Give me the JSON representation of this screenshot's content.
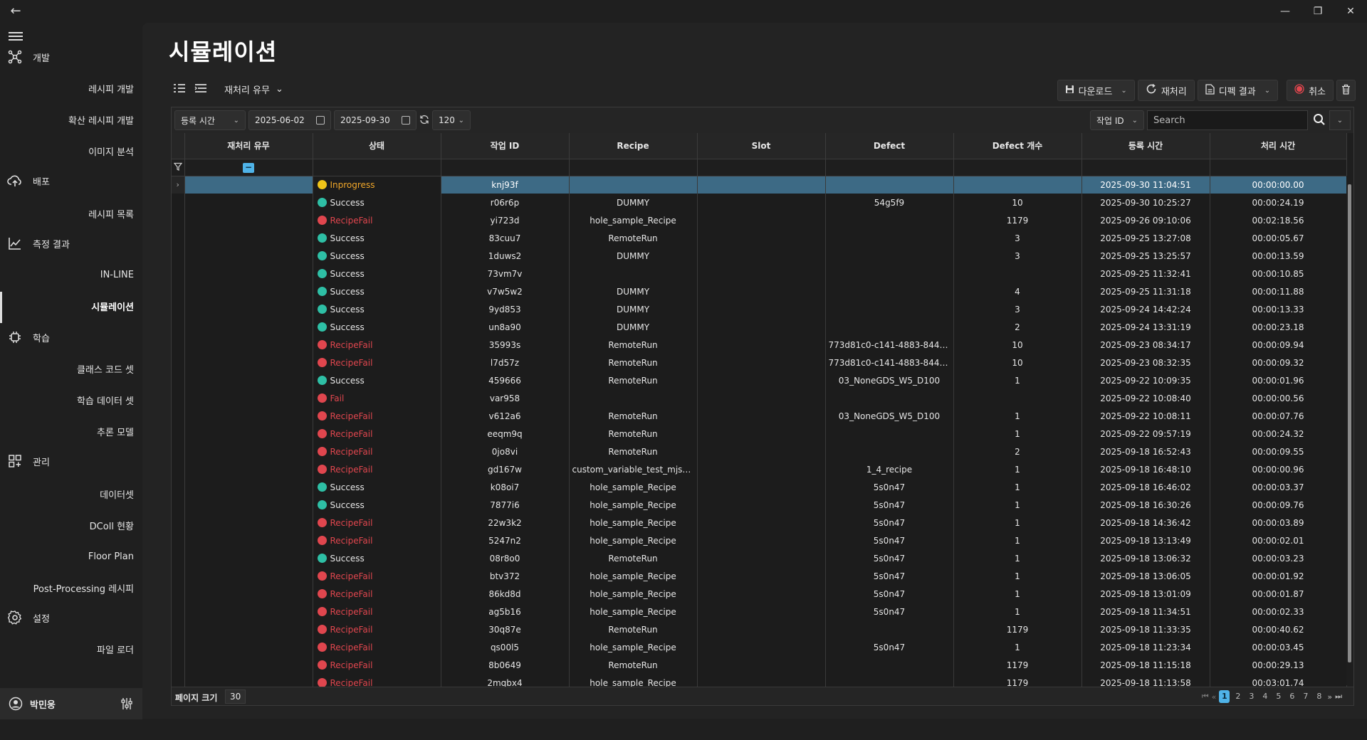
{
  "window": {
    "back_glyph": "←",
    "min_glyph": "—",
    "max_glyph": "❐",
    "close_glyph": "✕"
  },
  "sidebar": {
    "categories": [
      {
        "key": "dev",
        "label": "개발",
        "icon": "network-icon"
      },
      {
        "key": "deploy",
        "label": "배포",
        "icon": "cloud-upload-icon"
      },
      {
        "key": "measure",
        "label": "측정 결과",
        "icon": "line-chart-icon"
      },
      {
        "key": "learn",
        "label": "학습",
        "icon": "chip-icon"
      },
      {
        "key": "manage",
        "label": "관리",
        "icon": "apps-icon"
      },
      {
        "key": "settings",
        "label": "설정",
        "icon": "gear-icon"
      }
    ],
    "subitems": [
      "레시피 개발",
      "확산 레시피 개발",
      "이미지 분석",
      "레시피 목록",
      "IN-LINE",
      "시뮬레이션",
      "클래스 코드 셋",
      "학습 데이터 셋",
      "추론 모델",
      "데이터셋",
      "DColl 현황",
      "Floor Plan",
      "Post-Processing 레시피",
      "파일 로더"
    ],
    "active": "시뮬레이션",
    "user": "박민웅"
  },
  "page": {
    "title": "시뮬레이션"
  },
  "toolbar": {
    "group_by": "재처리 유무",
    "download": "다운로드",
    "reprocess": "재처리",
    "defect_result": "디펙 결과",
    "cancel": "취소"
  },
  "filterbar": {
    "date_field": "등록 시간",
    "start_date": "2025-06-02",
    "end_date": "2025-09-30",
    "refresh_interval": "120",
    "search_field": "작업 ID",
    "search_placeholder": "Search"
  },
  "table": {
    "columns": [
      "재처리 유무",
      "상태",
      "작업 ID",
      "Recipe",
      "Slot",
      "Defect",
      "Defect 개수",
      "등록 시간",
      "처리 시간"
    ],
    "rows": [
      [
        "",
        "Inprogress",
        "knj93f",
        "",
        "",
        "",
        "",
        "2025-09-30 11:04:51",
        "00:00:00.00"
      ],
      [
        "",
        "Success",
        "r06r6p",
        "DUMMY",
        "",
        "54g5f9",
        "10",
        "2025-09-30 10:25:27",
        "00:00:24.19"
      ],
      [
        "",
        "RecipeFail",
        "yi723d",
        "hole_sample_Recipe",
        "",
        "",
        "1179",
        "2025-09-26 09:10:06",
        "00:02:18.56"
      ],
      [
        "",
        "Success",
        "83cuu7",
        "RemoteRun",
        "",
        "",
        "3",
        "2025-09-25 13:27:08",
        "00:00:05.67"
      ],
      [
        "",
        "Success",
        "1duws2",
        "DUMMY",
        "",
        "",
        "3",
        "2025-09-25 13:25:57",
        "00:00:13.59"
      ],
      [
        "",
        "Success",
        "73vm7v",
        "",
        "",
        "",
        "",
        "2025-09-25 11:32:41",
        "00:00:10.85"
      ],
      [
        "",
        "Success",
        "v7w5w2",
        "DUMMY",
        "",
        "",
        "4",
        "2025-09-25 11:31:18",
        "00:00:11.88"
      ],
      [
        "",
        "Success",
        "9yd853",
        "DUMMY",
        "",
        "",
        "3",
        "2025-09-24 14:42:24",
        "00:00:13.33"
      ],
      [
        "",
        "Success",
        "un8a90",
        "DUMMY",
        "",
        "",
        "2",
        "2025-09-24 13:31:19",
        "00:00:23.18"
      ],
      [
        "",
        "RecipeFail",
        "35993s",
        "RemoteRun",
        "",
        "773d81c0-c141-4883-8440-c...",
        "10",
        "2025-09-23 08:34:17",
        "00:00:09.94"
      ],
      [
        "",
        "RecipeFail",
        "l7d57z",
        "RemoteRun",
        "",
        "773d81c0-c141-4883-8440-c...",
        "10",
        "2025-09-23 08:32:35",
        "00:00:09.32"
      ],
      [
        "",
        "Success",
        "459666",
        "RemoteRun",
        "",
        "03_NoneGDS_W5_D100",
        "1",
        "2025-09-22 10:09:35",
        "00:00:01.96"
      ],
      [
        "",
        "Fail",
        "var958",
        "",
        "",
        "",
        "",
        "2025-09-22 10:08:40",
        "00:00:00.56"
      ],
      [
        "",
        "RecipeFail",
        "v612a6",
        "RemoteRun",
        "",
        "03_NoneGDS_W5_D100",
        "1",
        "2025-09-22 10:08:11",
        "00:00:07.76"
      ],
      [
        "",
        "RecipeFail",
        "eeqm9q",
        "RemoteRun",
        "",
        "",
        "1",
        "2025-09-22 09:57:19",
        "00:00:24.32"
      ],
      [
        "",
        "RecipeFail",
        "0jo8vi",
        "RemoteRun",
        "",
        "",
        "2",
        "2025-09-18 16:52:43",
        "00:00:09.55"
      ],
      [
        "",
        "RecipeFail",
        "gd167w",
        "custom_variable_test_mjsong",
        "",
        "1_4_recipe",
        "1",
        "2025-09-18 16:48:10",
        "00:00:00.96"
      ],
      [
        "",
        "Success",
        "k08oi7",
        "hole_sample_Recipe",
        "",
        "5s0n47",
        "1",
        "2025-09-18 16:46:02",
        "00:00:03.37"
      ],
      [
        "",
        "Success",
        "7877i6",
        "hole_sample_Recipe",
        "",
        "5s0n47",
        "1",
        "2025-09-18 16:30:26",
        "00:00:09.76"
      ],
      [
        "",
        "RecipeFail",
        "22w3k2",
        "hole_sample_Recipe",
        "",
        "5s0n47",
        "1",
        "2025-09-18 14:36:42",
        "00:00:03.89"
      ],
      [
        "",
        "RecipeFail",
        "5247n2",
        "hole_sample_Recipe",
        "",
        "5s0n47",
        "1",
        "2025-09-18 13:13:49",
        "00:00:02.01"
      ],
      [
        "",
        "Success",
        "08r8o0",
        "RemoteRun",
        "",
        "5s0n47",
        "1",
        "2025-09-18 13:06:32",
        "00:00:03.23"
      ],
      [
        "",
        "RecipeFail",
        "btv372",
        "hole_sample_Recipe",
        "",
        "5s0n47",
        "1",
        "2025-09-18 13:06:05",
        "00:00:01.92"
      ],
      [
        "",
        "RecipeFail",
        "86kd8d",
        "hole_sample_Recipe",
        "",
        "5s0n47",
        "1",
        "2025-09-18 13:01:09",
        "00:00:01.87"
      ],
      [
        "",
        "RecipeFail",
        "ag5b16",
        "hole_sample_Recipe",
        "",
        "5s0n47",
        "1",
        "2025-09-18 11:34:51",
        "00:00:02.33"
      ],
      [
        "",
        "RecipeFail",
        "30q87e",
        "RemoteRun",
        "",
        "",
        "1179",
        "2025-09-18 11:33:35",
        "00:00:40.62"
      ],
      [
        "",
        "RecipeFail",
        "qs00l5",
        "hole_sample_Recipe",
        "",
        "5s0n47",
        "1",
        "2025-09-18 11:23:34",
        "00:00:03.45"
      ],
      [
        "",
        "RecipeFail",
        "8b0649",
        "RemoteRun",
        "",
        "",
        "1179",
        "2025-09-18 11:15:18",
        "00:00:29.13"
      ],
      [
        "",
        "RecipeFail",
        "2mqbx4",
        "hole_sample_Recipe",
        "",
        "",
        "1179",
        "2025-09-18 11:13:58",
        "00:03:01.74"
      ]
    ]
  },
  "pager": {
    "page_size_label": "페이지 크기",
    "page_size": "30",
    "pages": [
      "1",
      "2",
      "3",
      "4",
      "5",
      "6",
      "7",
      "8"
    ],
    "current": "1"
  },
  "colors": {
    "success": "#2ebfa5",
    "fail": "#e0464e",
    "inprogress": "#f0c419",
    "selected_row": "#3d6a85",
    "accent": "#4fb3e8"
  }
}
